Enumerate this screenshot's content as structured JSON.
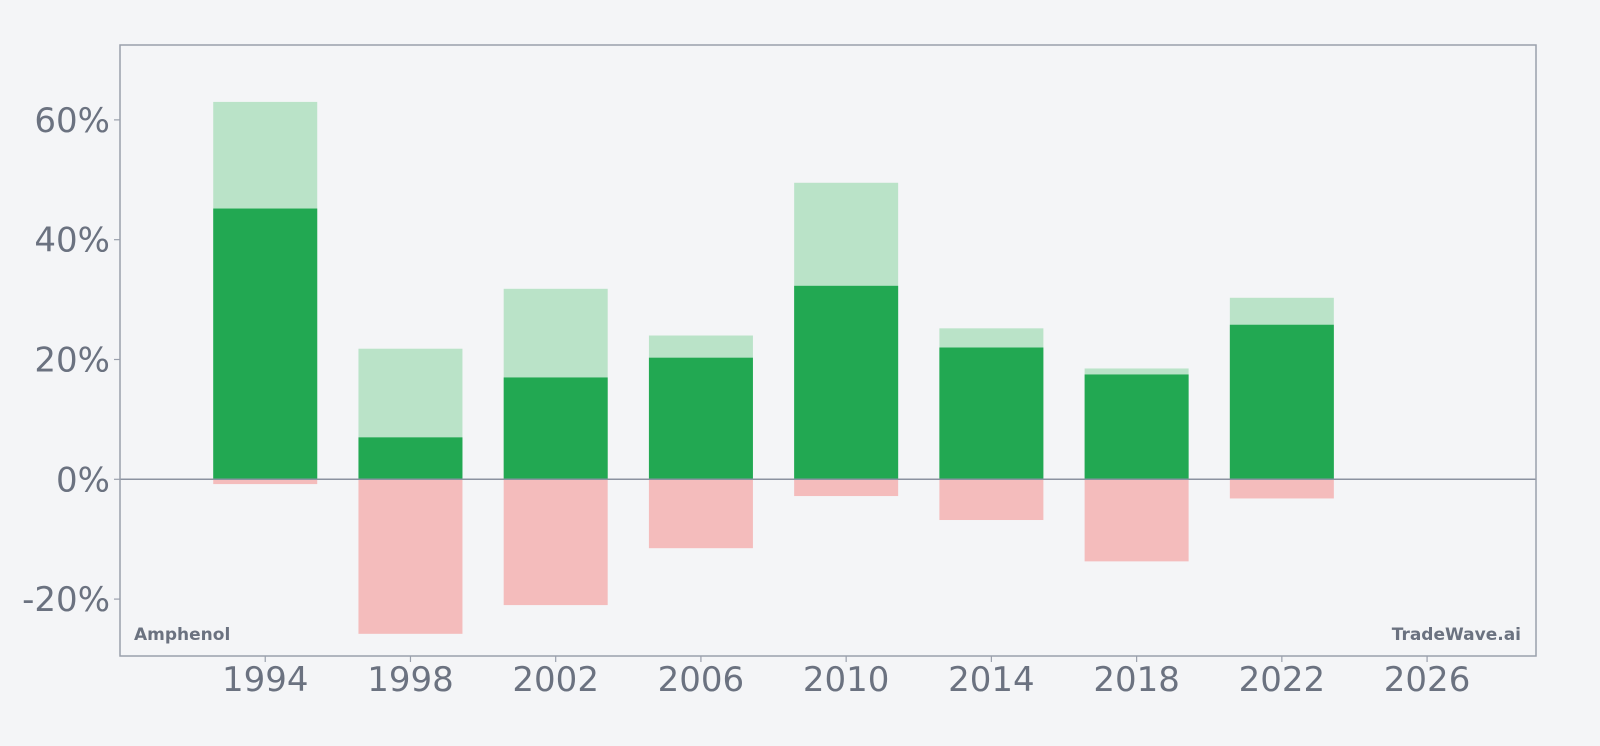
{
  "chart_data": {
    "type": "bar",
    "title": "",
    "xlabel": "",
    "ylabel": "",
    "x": [
      1994,
      1998,
      2002,
      2006,
      2010,
      2014,
      2018,
      2022
    ],
    "series": [
      {
        "role": "high",
        "color": "#bae3c8",
        "values": [
          63.0,
          21.8,
          31.8,
          24.0,
          49.5,
          25.2,
          18.5,
          30.3
        ]
      },
      {
        "role": "close",
        "color": "#22a852",
        "values": [
          45.2,
          7.0,
          17.0,
          20.3,
          32.3,
          22.0,
          17.5,
          25.8
        ]
      },
      {
        "role": "low",
        "color": "#f4bcbc",
        "values": [
          -0.8,
          -25.8,
          -21.0,
          -11.5,
          -2.8,
          -6.8,
          -13.7,
          -3.2
        ]
      }
    ],
    "xlim": [
      1990,
      2029
    ],
    "ylim": [
      -29.5,
      72.5
    ],
    "yticks": [
      -20,
      0,
      20,
      40,
      60
    ],
    "ytick_labels": [
      "-20%",
      "0%",
      "20%",
      "40%",
      "60%"
    ],
    "xticks": [
      1994,
      1998,
      2002,
      2006,
      2010,
      2014,
      2018,
      2022,
      2026
    ],
    "xtick_labels": [
      "1994",
      "1998",
      "2002",
      "2006",
      "2010",
      "2014",
      "2018",
      "2022",
      "2026"
    ],
    "grid": false,
    "zero_line_color": "#8b92a0",
    "frame_color": "#9aa0ac"
  },
  "labels": {
    "company": "Amphenol",
    "brand": "TradeWave.ai"
  }
}
